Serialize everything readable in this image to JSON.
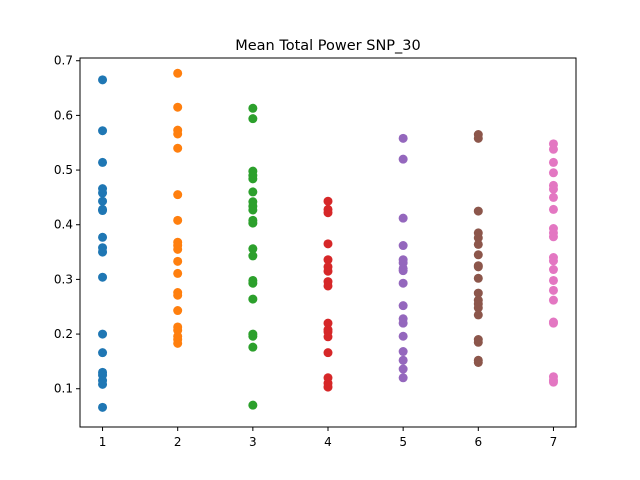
{
  "chart_data": {
    "type": "scatter",
    "title": "Mean Total Power SNP_30",
    "xlabel": "",
    "ylabel": "",
    "xlim": [
      0.7,
      7.3
    ],
    "ylim": [
      0.03,
      0.705
    ],
    "x_ticks": [
      1,
      2,
      3,
      4,
      5,
      6,
      7
    ],
    "y_ticks": [
      0.1,
      0.2,
      0.3,
      0.4,
      0.5,
      0.6,
      0.7
    ],
    "legend": "none",
    "grid": false,
    "series": [
      {
        "color": "#1f77b4",
        "x": 1,
        "values": [
          0.665,
          0.572,
          0.514,
          0.466,
          0.458,
          0.443,
          0.428,
          0.426,
          0.377,
          0.358,
          0.35,
          0.304,
          0.2,
          0.166,
          0.13,
          0.125,
          0.115,
          0.108,
          0.066
        ]
      },
      {
        "color": "#ff7f0e",
        "x": 2,
        "values": [
          0.677,
          0.615,
          0.573,
          0.566,
          0.54,
          0.455,
          0.408,
          0.368,
          0.362,
          0.355,
          0.333,
          0.311,
          0.276,
          0.271,
          0.243,
          0.213,
          0.207,
          0.196,
          0.19,
          0.183
        ]
      },
      {
        "color": "#2ca02c",
        "x": 3,
        "values": [
          0.613,
          0.594,
          0.498,
          0.49,
          0.484,
          0.46,
          0.442,
          0.434,
          0.427,
          0.408,
          0.403,
          0.356,
          0.343,
          0.298,
          0.293,
          0.264,
          0.2,
          0.196,
          0.176,
          0.07
        ]
      },
      {
        "color": "#d62728",
        "x": 4,
        "values": [
          0.443,
          0.428,
          0.422,
          0.365,
          0.336,
          0.323,
          0.315,
          0.296,
          0.288,
          0.22,
          0.208,
          0.204,
          0.195,
          0.166,
          0.12,
          0.11,
          0.103
        ]
      },
      {
        "color": "#9467bd",
        "x": 5,
        "values": [
          0.558,
          0.52,
          0.412,
          0.362,
          0.336,
          0.33,
          0.32,
          0.316,
          0.293,
          0.252,
          0.228,
          0.22,
          0.196,
          0.168,
          0.152,
          0.136,
          0.12
        ]
      },
      {
        "color": "#8c564b",
        "x": 6,
        "values": [
          0.565,
          0.558,
          0.425,
          0.385,
          0.376,
          0.364,
          0.345,
          0.325,
          0.323,
          0.302,
          0.275,
          0.262,
          0.255,
          0.248,
          0.235,
          0.19,
          0.185,
          0.152,
          0.148
        ]
      },
      {
        "color": "#e377c2",
        "x": 7,
        "values": [
          0.548,
          0.538,
          0.514,
          0.495,
          0.472,
          0.465,
          0.45,
          0.428,
          0.393,
          0.385,
          0.378,
          0.34,
          0.334,
          0.318,
          0.298,
          0.28,
          0.262,
          0.222,
          0.22,
          0.122,
          0.116,
          0.112
        ]
      }
    ]
  }
}
